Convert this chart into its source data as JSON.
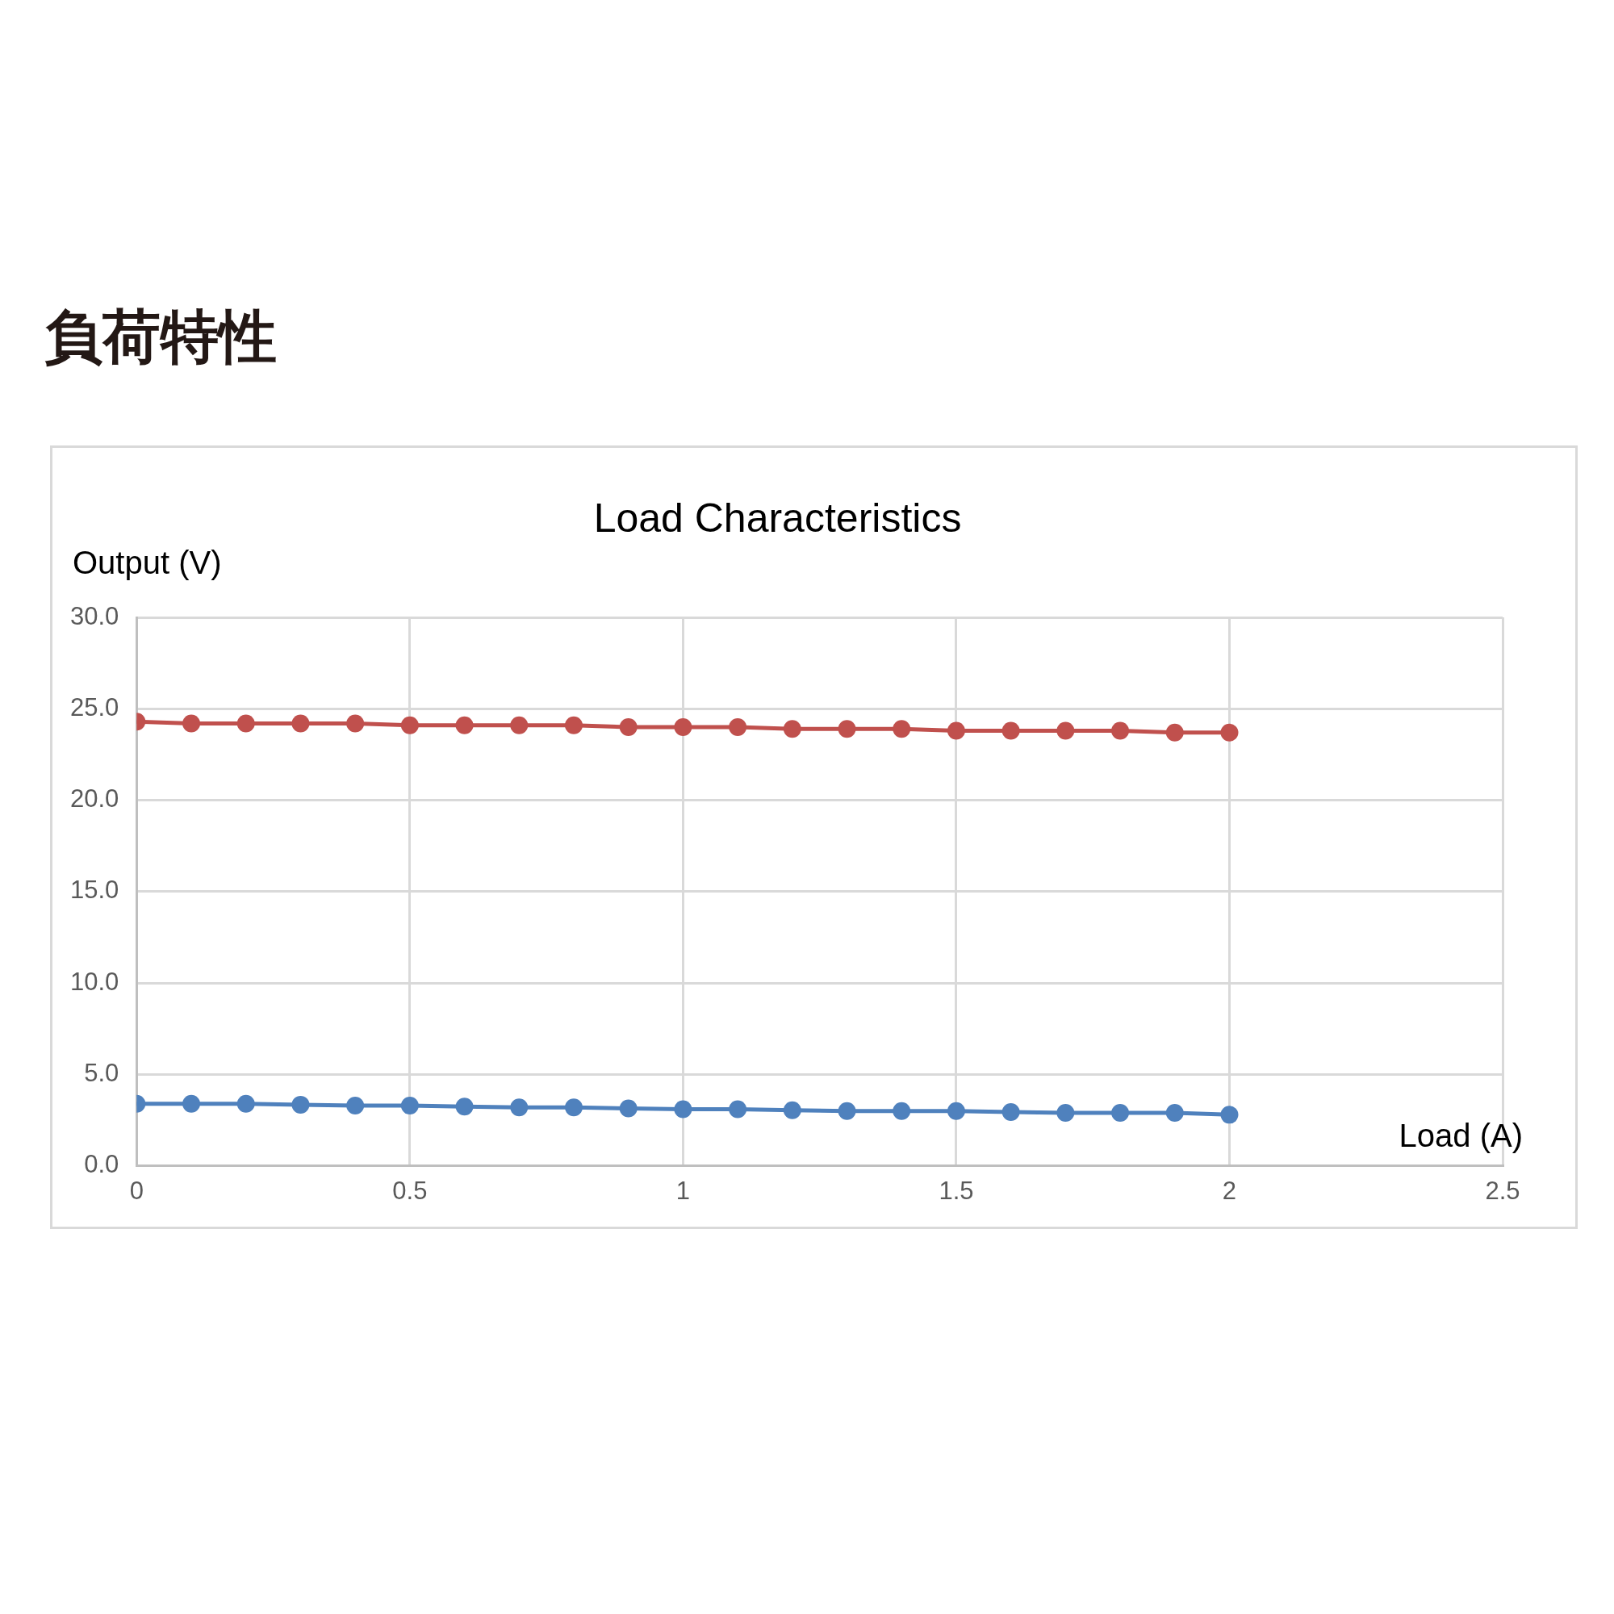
{
  "chart_data": {
    "type": "line",
    "title": "負荷特性",
    "subtitle": "Load Characteristics",
    "xlabel": "Load (A)",
    "ylabel": "Output (V)",
    "x": [
      0,
      0.1,
      0.2,
      0.3,
      0.4,
      0.5,
      0.6,
      0.7,
      0.8,
      0.9,
      1,
      1.1,
      1.2,
      1.3,
      1.4,
      1.5,
      1.6,
      1.7,
      1.8,
      1.9,
      2
    ],
    "series": [
      {
        "color": "#c0504d",
        "values": [
          24.3,
          24.2,
          24.2,
          24.2,
          24.2,
          24.1,
          24.1,
          24.1,
          24.1,
          24.0,
          24.0,
          24.0,
          23.9,
          23.9,
          23.9,
          23.8,
          23.8,
          23.8,
          23.8,
          23.7,
          23.7
        ]
      },
      {
        "color": "#4f81bd",
        "values": [
          3.4,
          3.4,
          3.4,
          3.35,
          3.3,
          3.3,
          3.25,
          3.2,
          3.2,
          3.15,
          3.1,
          3.1,
          3.05,
          3.0,
          3.0,
          3.0,
          2.95,
          2.9,
          2.9,
          2.9,
          2.8
        ]
      }
    ],
    "xlim": [
      0,
      2.5
    ],
    "xticks": [
      0,
      0.5,
      1,
      1.5,
      2,
      2.5
    ],
    "ylim": [
      0,
      30
    ],
    "yticks": [
      {
        "value": 0,
        "label": "0.0"
      },
      {
        "value": 5,
        "label": "5.0"
      },
      {
        "value": 10,
        "label": "10.0"
      },
      {
        "value": 15,
        "label": "15.0"
      },
      {
        "value": 20,
        "label": "20.0"
      },
      {
        "value": 25,
        "label": "25.0"
      },
      {
        "value": 30,
        "label": "30.0"
      }
    ],
    "grid": true,
    "legend": false,
    "marker": "circle",
    "line_style": "solid"
  }
}
